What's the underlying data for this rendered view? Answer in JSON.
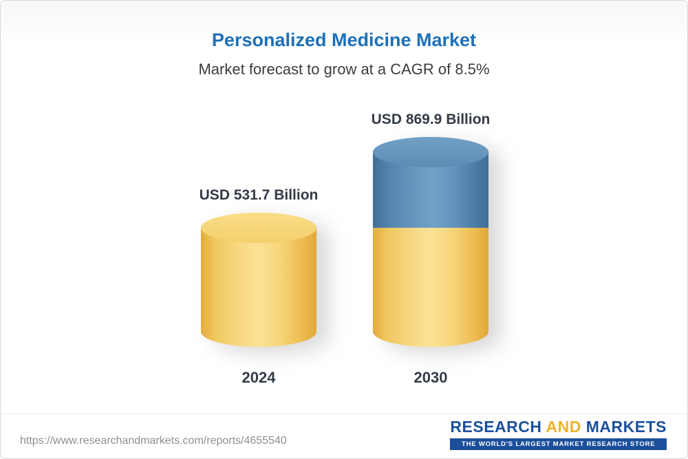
{
  "page": {
    "title": "Personalized Medicine Market",
    "subtitle": "Market forecast to grow at a CAGR of 8.5%"
  },
  "chart_data": {
    "type": "bar",
    "variant": "3d-cylinder",
    "title": "Personalized Medicine Market",
    "subtitle": "Market forecast to grow at a CAGR of 8.5%",
    "cagr": "8.5%",
    "unit": "USD Billion",
    "categories": [
      "2024",
      "2030"
    ],
    "values": [
      531.7,
      869.9
    ],
    "value_labels": [
      "USD 531.7 Billion",
      "USD 869.9 Billion"
    ],
    "ylim": [
      0,
      900
    ],
    "grid": false,
    "legend": "none",
    "colors": {
      "bar_2024": "#f6cd69",
      "bar_2030_base": "#f6c95f",
      "bar_2030_growth": "#5588b2",
      "title_text": "#1d70b8",
      "label_text": "#333b46"
    },
    "notes": "2030 cylinder is stacked: yellow base equals the 2024 value, blue top segment is the incremental growth to 869.9"
  },
  "footer": {
    "url": "https://www.researchandmarkets.com/reports/4655540",
    "logo": {
      "word1": "RESEARCH",
      "word2": "AND",
      "word3": "MARKETS",
      "tagline": "THE WORLD'S LARGEST MARKET RESEARCH STORE",
      "blue": "#1b4f9b",
      "gold": "#eeb22c"
    }
  }
}
